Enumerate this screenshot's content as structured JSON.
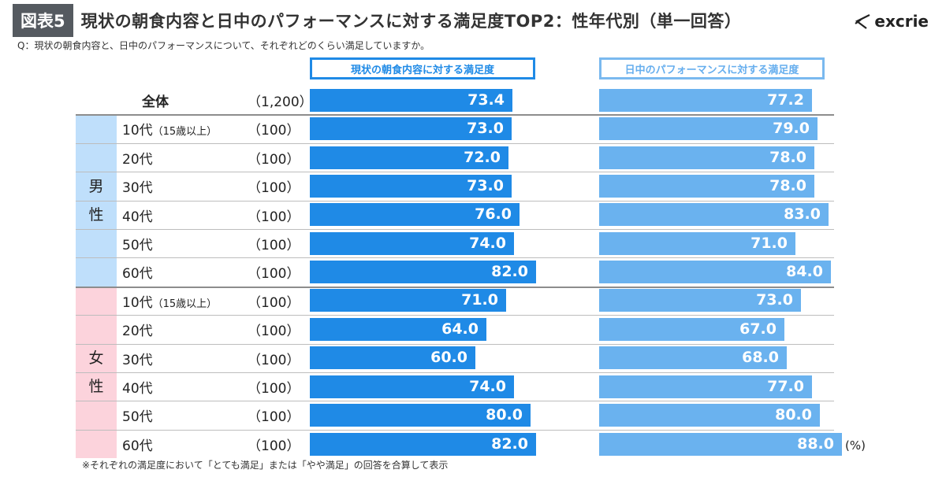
{
  "header": {
    "badge": "図表5",
    "title": "現状の朝食内容と日中のパフォーマンスに対する満足度TOP2：性年代別（単一回答）",
    "logo_text": "excrie"
  },
  "question": "Q：現状の朝食内容と、日中のパフォーマンスについて、それぞれどのくらい満足していますか。",
  "unit_label": "(%)",
  "footnote": "※それぞれの満足度において「とても満足」または「やや満足」の回答を合算して表示",
  "group_labels": {
    "male": [
      "男",
      "性"
    ],
    "female": [
      "女",
      "性"
    ]
  },
  "colors": {
    "series1": "#1f8ae6",
    "series2": "#6ab2ef",
    "male_band": "#bfdffb",
    "female_band": "#fcd3dc",
    "badge": "#555a60"
  },
  "chart_data": {
    "type": "bar",
    "orientation": "horizontal",
    "series": [
      {
        "name": "現状の朝食内容に対する満足度",
        "values": [
          73.4,
          73.0,
          72.0,
          73.0,
          76.0,
          74.0,
          82.0,
          71.0,
          64.0,
          60.0,
          74.0,
          80.0,
          82.0
        ]
      },
      {
        "name": "日中のパフォーマンスに対する満足度",
        "values": [
          77.2,
          79.0,
          78.0,
          78.0,
          83.0,
          71.0,
          84.0,
          73.0,
          67.0,
          68.0,
          77.0,
          80.0,
          88.0
        ]
      }
    ],
    "rows": [
      {
        "label": "全体",
        "note": "",
        "n": "（1,200）",
        "group": "total"
      },
      {
        "label": "10代",
        "note": "（15歳以上）",
        "n": "（100）",
        "group": "male"
      },
      {
        "label": "20代",
        "note": "",
        "n": "（100）",
        "group": "male"
      },
      {
        "label": "30代",
        "note": "",
        "n": "（100）",
        "group": "male"
      },
      {
        "label": "40代",
        "note": "",
        "n": "（100）",
        "group": "male"
      },
      {
        "label": "50代",
        "note": "",
        "n": "（100）",
        "group": "male"
      },
      {
        "label": "60代",
        "note": "",
        "n": "（100）",
        "group": "male"
      },
      {
        "label": "10代",
        "note": "（15歳以上）",
        "n": "（100）",
        "group": "female"
      },
      {
        "label": "20代",
        "note": "",
        "n": "（100）",
        "group": "female"
      },
      {
        "label": "30代",
        "note": "",
        "n": "（100）",
        "group": "female"
      },
      {
        "label": "40代",
        "note": "",
        "n": "（100）",
        "group": "female"
      },
      {
        "label": "50代",
        "note": "",
        "n": "（100）",
        "group": "female"
      },
      {
        "label": "60代",
        "note": "",
        "n": "（100）",
        "group": "female"
      }
    ],
    "xlim": [
      0,
      100
    ],
    "unit": "%",
    "grid": false
  }
}
